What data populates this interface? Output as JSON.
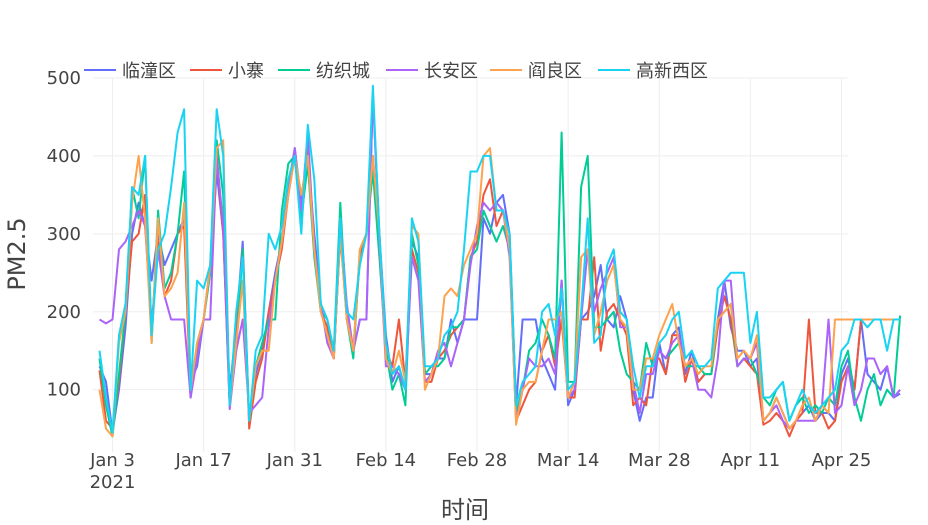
{
  "chart_data": {
    "type": "line",
    "title": "",
    "xlabel": "时间",
    "ylabel": "PM2.5",
    "x_start": "2021-01-01",
    "x_end": "2021-04-25",
    "xlim": [
      "2020-12-31",
      "2021-04-26"
    ],
    "ylim": [
      20,
      500
    ],
    "grid": true,
    "legend_position": "top-left, horizontal",
    "yticks": [
      100,
      200,
      300,
      400,
      500
    ],
    "xticks": [
      {
        "date": "2021-01-03",
        "label": "Jan 3",
        "sublabel": "2021"
      },
      {
        "date": "2021-01-17",
        "label": "Jan 17",
        "sublabel": ""
      },
      {
        "date": "2021-01-31",
        "label": "Jan 31",
        "sublabel": ""
      },
      {
        "date": "2021-02-14",
        "label": "Feb 14",
        "sublabel": ""
      },
      {
        "date": "2021-02-28",
        "label": "Feb 28",
        "sublabel": ""
      },
      {
        "date": "2021-03-14",
        "label": "Mar 14",
        "sublabel": ""
      },
      {
        "date": "2021-03-28",
        "label": "Mar 28",
        "sublabel": ""
      },
      {
        "date": "2021-04-11",
        "label": "Apr 11",
        "sublabel": ""
      },
      {
        "date": "2021-04-25",
        "label": "Apr 25",
        "sublabel": ""
      }
    ],
    "series": [
      {
        "name": "临潼区",
        "color": "#636efa",
        "values": [
          130,
          110,
          45,
          100,
          180,
          300,
          340,
          310,
          240,
          300,
          260,
          280,
          300,
          320,
          110,
          130,
          190,
          250,
          380,
          300,
          100,
          180,
          290,
          60,
          120,
          150,
          200,
          250,
          290,
          360,
          410,
          340,
          400,
          300,
          210,
          190,
          140,
          300,
          200,
          150,
          190,
          190,
          480,
          300,
          170,
          110,
          130,
          100,
          290,
          270,
          120,
          120,
          140,
          140,
          190,
          160,
          190,
          190,
          190,
          320,
          300,
          340,
          350,
          300,
          80,
          190,
          190,
          190,
          140,
          120,
          100,
          240,
          80,
          100,
          190,
          200,
          220,
          260,
          190,
          180,
          220,
          190,
          100,
          60,
          90,
          90,
          160,
          120,
          170,
          180,
          120,
          150,
          110,
          120,
          120,
          190,
          240,
          180,
          150,
          150,
          130,
          140,
          60,
          70,
          90,
          70,
          50,
          60,
          70,
          80,
          60,
          70,
          70,
          60,
          120,
          140,
          100,
          190,
          120,
          110,
          100,
          130,
          90,
          95
        ]
      },
      {
        "name": "小寨",
        "color": "#ef553b",
        "values": [
          125,
          60,
          50,
          110,
          200,
          290,
          300,
          350,
          180,
          290,
          220,
          240,
          300,
          310,
          90,
          150,
          190,
          260,
          400,
          300,
          80,
          170,
          280,
          50,
          110,
          140,
          200,
          240,
          280,
          350,
          400,
          310,
          410,
          280,
          200,
          180,
          140,
          300,
          190,
          150,
          270,
          300,
          400,
          280,
          150,
          130,
          190,
          110,
          280,
          250,
          110,
          110,
          140,
          150,
          170,
          180,
          190,
          270,
          290,
          350,
          370,
          310,
          330,
          280,
          60,
          80,
          100,
          110,
          150,
          170,
          130,
          190,
          90,
          90,
          190,
          190,
          270,
          150,
          200,
          210,
          190,
          170,
          80,
          90,
          80,
          140,
          140,
          120,
          170,
          170,
          110,
          140,
          110,
          120,
          120,
          180,
          220,
          190,
          130,
          140,
          130,
          120,
          55,
          60,
          70,
          60,
          40,
          60,
          70,
          190,
          70,
          70,
          50,
          60,
          110,
          130,
          100,
          190,
          190,
          190,
          190,
          190,
          190,
          190
        ]
      },
      {
        "name": "纺织城",
        "color": "#00cc96",
        "values": [
          140,
          80,
          40,
          120,
          200,
          360,
          320,
          400,
          160,
          330,
          230,
          250,
          300,
          380,
          90,
          160,
          190,
          250,
          420,
          350,
          80,
          150,
          280,
          60,
          130,
          160,
          190,
          190,
          330,
          390,
          400,
          320,
          390,
          270,
          200,
          190,
          150,
          340,
          190,
          140,
          280,
          300,
          380,
          270,
          150,
          100,
          120,
          80,
          300,
          260,
          120,
          130,
          130,
          140,
          180,
          180,
          190,
          270,
          280,
          330,
          310,
          290,
          310,
          280,
          70,
          100,
          150,
          160,
          190,
          170,
          140,
          430,
          110,
          110,
          360,
          400,
          180,
          180,
          190,
          200,
          150,
          120,
          110,
          100,
          160,
          130,
          150,
          140,
          150,
          160,
          130,
          130,
          130,
          120,
          120,
          190,
          200,
          210,
          130,
          140,
          140,
          120,
          90,
          80,
          100,
          110,
          60,
          80,
          90,
          70,
          80,
          70,
          90,
          80,
          130,
          150,
          90,
          60,
          100,
          120,
          80,
          100,
          90,
          195
        ]
      },
      {
        "name": "长安区",
        "color": "#ab63fa",
        "values": [
          190,
          185,
          190,
          280,
          290,
          310,
          330,
          310,
          180,
          280,
          220,
          190,
          190,
          190,
          90,
          140,
          190,
          190,
          400,
          310,
          75,
          150,
          190,
          70,
          80,
          90,
          180,
          240,
          290,
          350,
          410,
          330,
          430,
          280,
          210,
          160,
          140,
          320,
          210,
          150,
          190,
          190,
          480,
          290,
          130,
          130,
          120,
          100,
          270,
          240,
          110,
          120,
          150,
          160,
          130,
          160,
          190,
          260,
          310,
          340,
          330,
          340,
          330,
          270,
          60,
          100,
          140,
          130,
          130,
          140,
          120,
          240,
          90,
          100,
          190,
          280,
          200,
          230,
          250,
          270,
          180,
          180,
          110,
          70,
          120,
          120,
          150,
          140,
          160,
          170,
          130,
          140,
          100,
          100,
          90,
          140,
          240,
          240,
          130,
          140,
          140,
          160,
          60,
          70,
          80,
          60,
          50,
          60,
          60,
          60,
          60,
          80,
          190,
          70,
          80,
          130,
          80,
          100,
          140,
          140,
          120,
          130,
          90,
          100
        ]
      },
      {
        "name": "阎良区",
        "color": "#fea24f",
        "values": [
          100,
          50,
          40,
          160,
          200,
          340,
          400,
          320,
          160,
          320,
          220,
          230,
          250,
          340,
          100,
          160,
          190,
          260,
          410,
          420,
          80,
          160,
          240,
          60,
          130,
          150,
          150,
          240,
          290,
          350,
          400,
          350,
          400,
          280,
          200,
          170,
          140,
          300,
          190,
          150,
          280,
          300,
          400,
          300,
          140,
          120,
          150,
          110,
          310,
          300,
          100,
          120,
          140,
          220,
          230,
          220,
          260,
          280,
          300,
          400,
          410,
          330,
          330,
          280,
          55,
          100,
          110,
          110,
          150,
          190,
          190,
          200,
          90,
          110,
          270,
          280,
          170,
          200,
          240,
          260,
          190,
          180,
          100,
          100,
          140,
          140,
          170,
          190,
          210,
          160,
          130,
          140,
          120,
          130,
          130,
          190,
          200,
          210,
          140,
          150,
          140,
          170,
          60,
          70,
          90,
          70,
          50,
          60,
          80,
          90,
          60,
          80,
          70,
          190,
          190,
          190,
          190,
          190,
          190,
          190,
          190,
          190,
          190,
          190
        ]
      },
      {
        "name": "高新西区",
        "color": "#19d3f3",
        "values": [
          150,
          90,
          45,
          170,
          210,
          360,
          350,
          400,
          170,
          280,
          300,
          360,
          430,
          460,
          100,
          240,
          230,
          260,
          460,
          400,
          80,
          200,
          270,
          60,
          150,
          170,
          300,
          280,
          310,
          370,
          400,
          300,
          440,
          370,
          210,
          190,
          150,
          320,
          200,
          190,
          260,
          300,
          490,
          300,
          160,
          120,
          130,
          100,
          320,
          290,
          130,
          130,
          140,
          170,
          180,
          200,
          280,
          380,
          380,
          400,
          400,
          330,
          330,
          300,
          80,
          110,
          120,
          130,
          200,
          210,
          170,
          230,
          100,
          110,
          200,
          320,
          160,
          170,
          260,
          280,
          200,
          190,
          130,
          90,
          130,
          130,
          160,
          170,
          190,
          200,
          140,
          150,
          130,
          130,
          140,
          230,
          240,
          250,
          250,
          250,
          160,
          200,
          90,
          90,
          100,
          110,
          60,
          80,
          100,
          80,
          70,
          80,
          90,
          100,
          150,
          160,
          190,
          190,
          180,
          190,
          190,
          150,
          190,
          190
        ]
      }
    ]
  }
}
